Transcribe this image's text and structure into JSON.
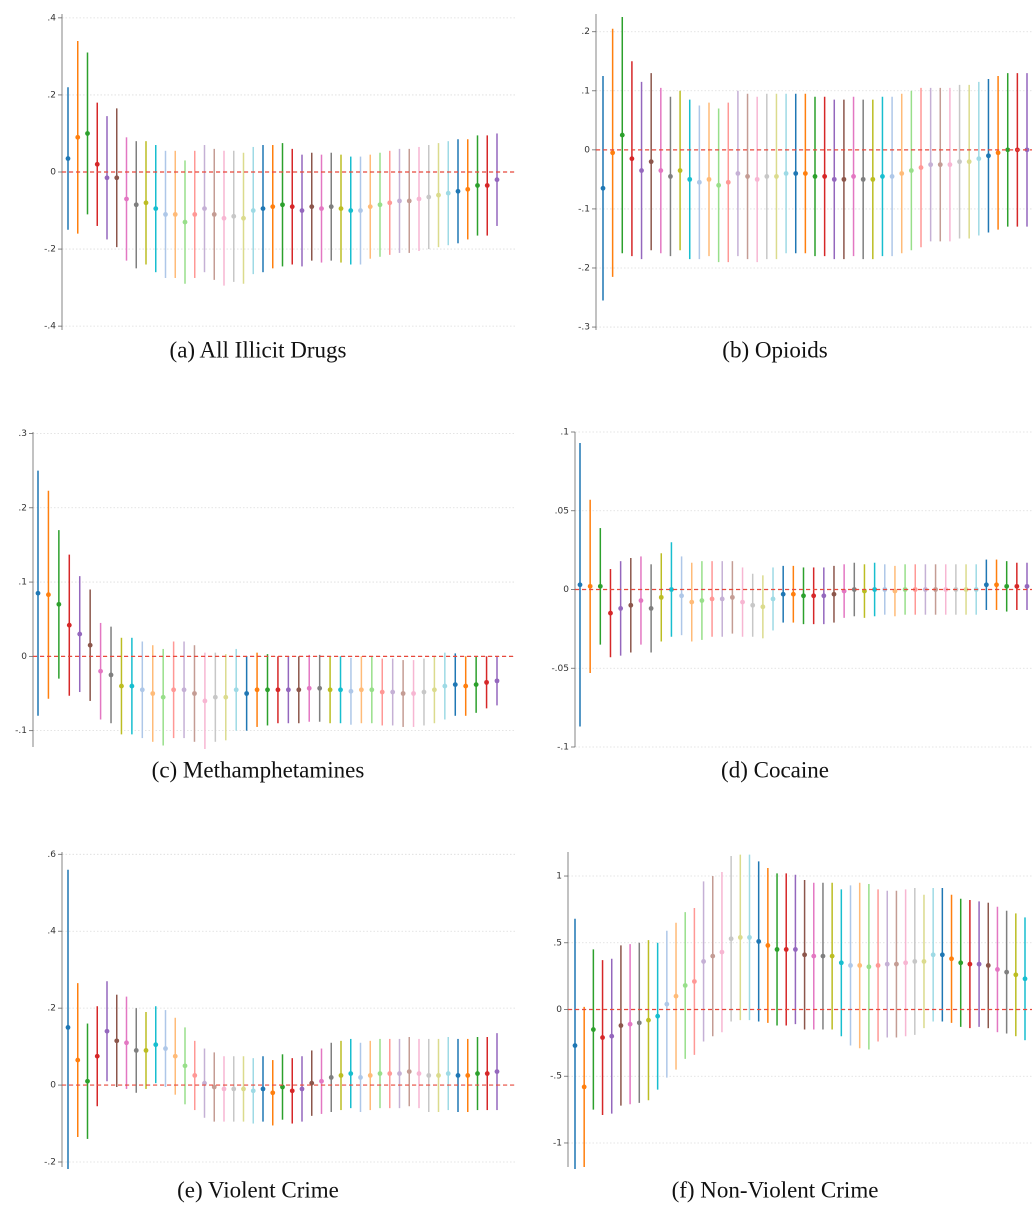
{
  "chart_data": [
    {
      "type": "errorbar",
      "title": "(a) All Illicit Drugs",
      "ylim": [
        -0.41,
        0.41
      ],
      "yticks": [
        {
          "value": -0.4,
          "label": "-.4"
        },
        {
          "value": -0.2,
          "label": "-.2"
        },
        0,
        {
          "value": 0.2,
          "label": ".2"
        },
        {
          "value": 0.4,
          "label": ".4"
        }
      ],
      "grid": true,
      "reference_line": {
        "value": 0,
        "color": "#e8483b"
      },
      "colors": [
        "#1f77b4",
        "#ff7f0e",
        "#2ca02c",
        "#d62728",
        "#9467bd",
        "#8c564b",
        "#e377c2",
        "#7f7f7f",
        "#bcbd22",
        "#17becf",
        "#aec7e8",
        "#ffbb78",
        "#98df8a",
        "#ff9896",
        "#c5b0d5",
        "#c49c94",
        "#f7b6d2",
        "#c7c7c7",
        "#dbdb8d",
        "#9edae5"
      ],
      "values": [
        0.035,
        0.09,
        0.1,
        0.02,
        -0.015,
        -0.015,
        -0.07,
        -0.085,
        -0.08,
        -0.095,
        -0.11,
        -0.11,
        -0.13,
        -0.11,
        -0.095,
        -0.11,
        -0.12,
        -0.115,
        -0.12,
        -0.1,
        -0.095,
        -0.09,
        -0.085,
        -0.09,
        -0.1,
        -0.09,
        -0.095,
        -0.09,
        -0.095,
        -0.1,
        -0.1,
        -0.09,
        -0.085,
        -0.08,
        -0.075,
        -0.075,
        -0.07,
        -0.065,
        -0.06,
        -0.055,
        -0.05,
        -0.045,
        -0.035,
        -0.035,
        -0.02
      ],
      "errors": [
        0.185,
        0.25,
        0.21,
        0.16,
        0.16,
        0.18,
        0.16,
        0.165,
        0.16,
        0.165,
        0.165,
        0.165,
        0.16,
        0.165,
        0.165,
        0.17,
        0.175,
        0.17,
        0.17,
        0.165,
        0.165,
        0.16,
        0.16,
        0.15,
        0.145,
        0.14,
        0.14,
        0.14,
        0.14,
        0.14,
        0.14,
        0.135,
        0.135,
        0.135,
        0.135,
        0.135,
        0.135,
        0.135,
        0.135,
        0.135,
        0.135,
        0.13,
        0.13,
        0.13,
        0.12
      ]
    },
    {
      "type": "errorbar",
      "title": "(b) Opioids",
      "ylim": [
        -0.305,
        0.23
      ],
      "yticks": [
        {
          "value": -0.3,
          "label": "-.3"
        },
        {
          "value": -0.2,
          "label": "-.2"
        },
        {
          "value": -0.1,
          "label": "-.1"
        },
        0,
        {
          "value": 0.1,
          "label": ".1"
        },
        {
          "value": 0.2,
          "label": ".2"
        }
      ],
      "grid": true,
      "reference_line": {
        "value": 0,
        "color": "#e8483b"
      },
      "colors": [
        "#1f77b4",
        "#ff7f0e",
        "#2ca02c",
        "#d62728",
        "#9467bd",
        "#8c564b",
        "#e377c2",
        "#7f7f7f",
        "#bcbd22",
        "#17becf",
        "#aec7e8",
        "#ffbb78",
        "#98df8a",
        "#ff9896",
        "#c5b0d5",
        "#c49c94",
        "#f7b6d2",
        "#c7c7c7",
        "#dbdb8d",
        "#9edae5"
      ],
      "values": [
        -0.065,
        -0.005,
        0.025,
        -0.015,
        -0.035,
        -0.02,
        -0.035,
        -0.045,
        -0.035,
        -0.05,
        -0.055,
        -0.05,
        -0.06,
        -0.055,
        -0.04,
        -0.045,
        -0.05,
        -0.045,
        -0.045,
        -0.04,
        -0.04,
        -0.04,
        -0.045,
        -0.045,
        -0.05,
        -0.05,
        -0.045,
        -0.05,
        -0.05,
        -0.045,
        -0.045,
        -0.04,
        -0.035,
        -0.03,
        -0.025,
        -0.025,
        -0.025,
        -0.02,
        -0.02,
        -0.015,
        -0.01,
        -0.005,
        0,
        0,
        0
      ],
      "errors": [
        0.19,
        0.21,
        0.2,
        0.165,
        0.15,
        0.15,
        0.14,
        0.135,
        0.135,
        0.135,
        0.13,
        0.13,
        0.13,
        0.135,
        0.14,
        0.14,
        0.14,
        0.14,
        0.14,
        0.135,
        0.135,
        0.135,
        0.135,
        0.135,
        0.135,
        0.135,
        0.135,
        0.135,
        0.135,
        0.135,
        0.135,
        0.135,
        0.135,
        0.135,
        0.13,
        0.13,
        0.13,
        0.13,
        0.13,
        0.13,
        0.13,
        0.13,
        0.13,
        0.13,
        0.13
      ]
    },
    {
      "type": "errorbar",
      "title": "(c) Methamphetamines",
      "ylim": [
        -0.122,
        0.302
      ],
      "yticks": [
        {
          "value": -0.1,
          "label": "-.1"
        },
        0,
        {
          "value": 0.1,
          "label": ".1"
        },
        {
          "value": 0.2,
          "label": ".2"
        },
        {
          "value": 0.3,
          "label": ".3"
        }
      ],
      "grid": true,
      "reference_line": {
        "value": 0,
        "color": "#e8483b"
      },
      "colors": [
        "#1f77b4",
        "#ff7f0e",
        "#2ca02c",
        "#d62728",
        "#9467bd",
        "#8c564b",
        "#e377c2",
        "#7f7f7f",
        "#bcbd22",
        "#17becf",
        "#aec7e8",
        "#ffbb78",
        "#98df8a",
        "#ff9896",
        "#c5b0d5",
        "#c49c94",
        "#f7b6d2",
        "#c7c7c7",
        "#dbdb8d",
        "#9edae5"
      ],
      "values": [
        0.085,
        0.083,
        0.07,
        0.042,
        0.03,
        0.015,
        -0.02,
        -0.025,
        -0.04,
        -0.04,
        -0.045,
        -0.05,
        -0.055,
        -0.045,
        -0.045,
        -0.05,
        -0.06,
        -0.055,
        -0.055,
        -0.045,
        -0.05,
        -0.045,
        -0.045,
        -0.045,
        -0.045,
        -0.045,
        -0.043,
        -0.043,
        -0.045,
        -0.045,
        -0.047,
        -0.045,
        -0.045,
        -0.048,
        -0.048,
        -0.05,
        -0.05,
        -0.048,
        -0.045,
        -0.04,
        -0.038,
        -0.04,
        -0.038,
        -0.035,
        -0.033
      ],
      "errors": [
        0.165,
        0.14,
        0.1,
        0.095,
        0.078,
        0.075,
        0.065,
        0.065,
        0.065,
        0.065,
        0.065,
        0.065,
        0.065,
        0.065,
        0.065,
        0.065,
        0.065,
        0.06,
        0.058,
        0.055,
        0.05,
        0.05,
        0.048,
        0.045,
        0.045,
        0.045,
        0.045,
        0.045,
        0.045,
        0.045,
        0.045,
        0.045,
        0.045,
        0.045,
        0.045,
        0.045,
        0.045,
        0.045,
        0.045,
        0.045,
        0.042,
        0.04,
        0.038,
        0.035,
        0.033
      ]
    },
    {
      "type": "errorbar",
      "title": "(d) Cocaine",
      "ylim": [
        -0.1,
        0.1
      ],
      "yticks": [
        {
          "value": -0.1,
          "label": "-.1"
        },
        {
          "value": -0.05,
          "label": "-.05"
        },
        0,
        {
          "value": 0.05,
          "label": ".05"
        },
        {
          "value": 0.1,
          "label": ".1"
        }
      ],
      "grid": true,
      "reference_line": {
        "value": 0,
        "color": "#e8483b"
      },
      "colors": [
        "#1f77b4",
        "#ff7f0e",
        "#2ca02c",
        "#d62728",
        "#9467bd",
        "#8c564b",
        "#e377c2",
        "#7f7f7f",
        "#bcbd22",
        "#17becf",
        "#aec7e8",
        "#ffbb78",
        "#98df8a",
        "#ff9896",
        "#c5b0d5",
        "#c49c94",
        "#f7b6d2",
        "#c7c7c7",
        "#dbdb8d",
        "#9edae5"
      ],
      "values": [
        0.003,
        0.002,
        0.002,
        -0.015,
        -0.012,
        -0.01,
        -0.007,
        -0.012,
        -0.005,
        0,
        -0.004,
        -0.008,
        -0.007,
        -0.006,
        -0.006,
        -0.005,
        -0.008,
        -0.01,
        -0.011,
        -0.006,
        -0.003,
        -0.003,
        -0.004,
        -0.004,
        -0.004,
        -0.003,
        -0.001,
        0,
        -0.001,
        0,
        0,
        -0.001,
        0,
        0,
        0,
        0,
        0,
        0,
        0,
        0,
        0.003,
        0.003,
        0.002,
        0.002,
        0.002
      ],
      "errors": [
        0.09,
        0.055,
        0.037,
        0.028,
        0.03,
        0.03,
        0.028,
        0.028,
        0.028,
        0.03,
        0.025,
        0.025,
        0.025,
        0.024,
        0.024,
        0.023,
        0.022,
        0.02,
        0.02,
        0.02,
        0.018,
        0.018,
        0.018,
        0.018,
        0.018,
        0.018,
        0.017,
        0.017,
        0.017,
        0.017,
        0.016,
        0.016,
        0.016,
        0.016,
        0.016,
        0.016,
        0.016,
        0.016,
        0.016,
        0.016,
        0.016,
        0.016,
        0.016,
        0.015,
        0.015
      ]
    },
    {
      "type": "errorbar",
      "title": "(e) Violent Crime",
      "ylim": [
        -0.213,
        0.606
      ],
      "yticks": [
        {
          "value": -0.2,
          "label": "-.2"
        },
        0,
        {
          "value": 0.2,
          "label": ".2"
        },
        {
          "value": 0.4,
          "label": ".4"
        },
        {
          "value": 0.6,
          "label": ".6"
        }
      ],
      "grid": true,
      "reference_line": {
        "value": 0,
        "color": "#e8483b"
      },
      "colors": [
        "#1f77b4",
        "#ff7f0e",
        "#2ca02c",
        "#d62728",
        "#9467bd",
        "#8c564b",
        "#e377c2",
        "#7f7f7f",
        "#bcbd22",
        "#17becf",
        "#aec7e8",
        "#ffbb78",
        "#98df8a",
        "#ff9896",
        "#c5b0d5",
        "#c49c94",
        "#f7b6d2",
        "#c7c7c7",
        "#dbdb8d",
        "#9edae5"
      ],
      "values": [
        0.15,
        0.065,
        0.01,
        0.075,
        0.14,
        0.115,
        0.11,
        0.09,
        0.09,
        0.105,
        0.095,
        0.075,
        0.05,
        0.025,
        0.005,
        -0.005,
        -0.01,
        -0.01,
        -0.01,
        -0.015,
        -0.01,
        -0.02,
        -0.005,
        -0.015,
        -0.01,
        0.005,
        0.01,
        0.02,
        0.025,
        0.03,
        0.02,
        0.025,
        0.03,
        0.03,
        0.03,
        0.035,
        0.03,
        0.025,
        0.025,
        0.03,
        0.025,
        0.025,
        0.03,
        0.03,
        0.035
      ],
      "errors": [
        0.41,
        0.2,
        0.15,
        0.13,
        0.13,
        0.12,
        0.12,
        0.11,
        0.1,
        0.1,
        0.1,
        0.1,
        0.1,
        0.09,
        0.09,
        0.09,
        0.085,
        0.085,
        0.085,
        0.085,
        0.085,
        0.085,
        0.085,
        0.085,
        0.085,
        0.085,
        0.085,
        0.09,
        0.09,
        0.09,
        0.09,
        0.09,
        0.09,
        0.09,
        0.09,
        0.09,
        0.09,
        0.095,
        0.095,
        0.095,
        0.095,
        0.095,
        0.095,
        0.095,
        0.1
      ]
    },
    {
      "type": "errorbar",
      "title": "(f) Non-Violent Crime",
      "ylim": [
        -1.18,
        1.18
      ],
      "yticks": [
        -1,
        {
          "value": -0.5,
          "label": "-.5"
        },
        0,
        {
          "value": 0.5,
          "label": ".5"
        },
        1
      ],
      "grid": true,
      "reference_line": {
        "value": 0,
        "color": "#e8483b"
      },
      "colors": [
        "#1f77b4",
        "#ff7f0e",
        "#2ca02c",
        "#d62728",
        "#9467bd",
        "#8c564b",
        "#e377c2",
        "#7f7f7f",
        "#bcbd22",
        "#17becf",
        "#aec7e8",
        "#ffbb78",
        "#98df8a",
        "#ff9896",
        "#c5b0d5",
        "#c49c94",
        "#f7b6d2",
        "#c7c7c7",
        "#dbdb8d",
        "#9edae5"
      ],
      "values": [
        -0.27,
        -0.58,
        -0.15,
        -0.21,
        -0.2,
        -0.12,
        -0.11,
        -0.1,
        -0.08,
        -0.05,
        0.04,
        0.1,
        0.18,
        0.21,
        0.36,
        0.4,
        0.43,
        0.53,
        0.54,
        0.54,
        0.51,
        0.48,
        0.45,
        0.45,
        0.45,
        0.41,
        0.4,
        0.4,
        0.4,
        0.35,
        0.33,
        0.33,
        0.32,
        0.33,
        0.34,
        0.34,
        0.35,
        0.36,
        0.36,
        0.41,
        0.41,
        0.38,
        0.35,
        0.34,
        0.34,
        0.33,
        0.3,
        0.28,
        0.26,
        0.23
      ],
      "errors": [
        0.95,
        0.6,
        0.6,
        0.58,
        0.58,
        0.6,
        0.6,
        0.6,
        0.6,
        0.55,
        0.55,
        0.55,
        0.55,
        0.55,
        0.6,
        0.6,
        0.6,
        0.62,
        0.62,
        0.62,
        0.6,
        0.58,
        0.57,
        0.57,
        0.56,
        0.56,
        0.55,
        0.55,
        0.55,
        0.55,
        0.6,
        0.62,
        0.62,
        0.57,
        0.55,
        0.55,
        0.55,
        0.55,
        0.5,
        0.5,
        0.5,
        0.48,
        0.48,
        0.48,
        0.47,
        0.47,
        0.47,
        0.46,
        0.46,
        0.46
      ]
    }
  ]
}
